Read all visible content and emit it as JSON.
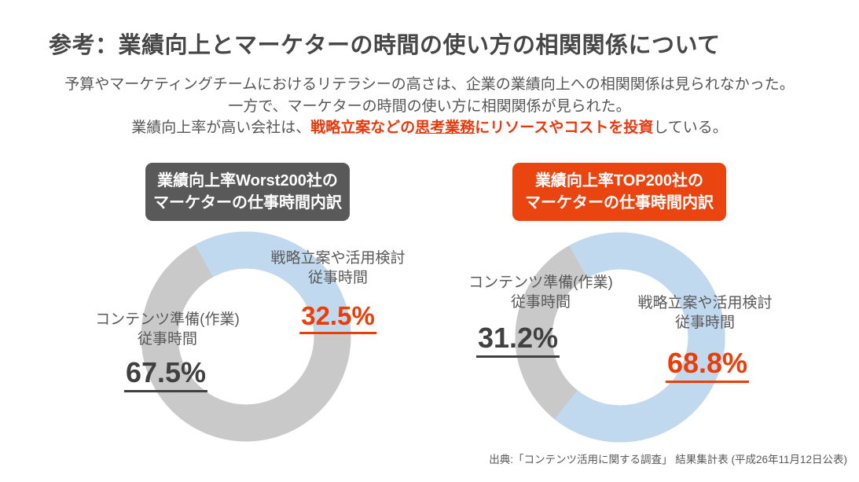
{
  "title": "参考：業績向上とマーケターの時間の使い方の相関関係について",
  "subtitle": {
    "line1": "予算やマーケティングチームにおけるリテラシーの高さは、企業の業績向上への相関関係は見られなかった。",
    "line2": "一方で、マーケターの時間の使い方に相関関係が見られた。",
    "line3_prefix": "業績向上率が高い会社は、",
    "line3_red1": "戦略立案などの",
    "line3_red_underlined": "思考業務",
    "line3_red2": "にリソースやコストを投資",
    "line3_suffix": "している。"
  },
  "colors": {
    "badge_gray": "#595959",
    "badge_orange": "#ea4511",
    "donut_blue": "#c0d9ef",
    "donut_gray": "#c9c9c9",
    "pct_dark": "#404040",
    "pct_orange": "#ec3c07",
    "red_text": "#e8380d"
  },
  "charts": {
    "worst": {
      "badge_line1": "業績向上率Worst200社の",
      "badge_line2": "マーケターの仕事時間内訳",
      "strategy_label_line1": "戦略立案や活用検討",
      "strategy_label_line2": "従事時間",
      "strategy_pct": "32.5%",
      "content_label_line1": "コンテンツ準備(作業)",
      "content_label_line2": "従事時間",
      "content_pct": "67.5%"
    },
    "top": {
      "badge_line1": "業績向上率TOP200社の",
      "badge_line2": "マーケターの仕事時間内訳",
      "strategy_label_line1": "戦略立案や活用検討",
      "strategy_label_line2": "従事時間",
      "strategy_pct": "68.8%",
      "content_label_line1": "コンテンツ準備(作業)",
      "content_label_line2": "従事時間",
      "content_pct": "31.2%"
    }
  },
  "chart_data": [
    {
      "type": "pie",
      "subtype": "donut",
      "title": "業績向上率Worst200社のマーケターの仕事時間内訳",
      "unit": "%",
      "start_angle_deg": -29,
      "direction": "clockwise",
      "legend": "labels-around-chart",
      "segments": [
        {
          "label": "戦略立案や活用検討 従事時間",
          "value": 32.5,
          "color": "#c0d9ef"
        },
        {
          "label": "コンテンツ準備(作業) 従事時間",
          "value": 67.5,
          "color": "#c9c9c9"
        }
      ]
    },
    {
      "type": "pie",
      "subtype": "donut",
      "title": "業績向上率TOP200社のマーケターの仕事時間内訳",
      "unit": "%",
      "start_angle_deg": -29,
      "direction": "clockwise",
      "legend": "labels-around-chart",
      "segments": [
        {
          "label": "戦略立案や活用検討 従事時間",
          "value": 68.8,
          "color": "#c0d9ef"
        },
        {
          "label": "コンテンツ準備(作業) 従事時間",
          "value": 31.2,
          "color": "#c9c9c9"
        }
      ]
    }
  ],
  "footer": "出典:「コンテンツ活用に関する調査」 結果集計表 (平成26年11月12日公表)"
}
